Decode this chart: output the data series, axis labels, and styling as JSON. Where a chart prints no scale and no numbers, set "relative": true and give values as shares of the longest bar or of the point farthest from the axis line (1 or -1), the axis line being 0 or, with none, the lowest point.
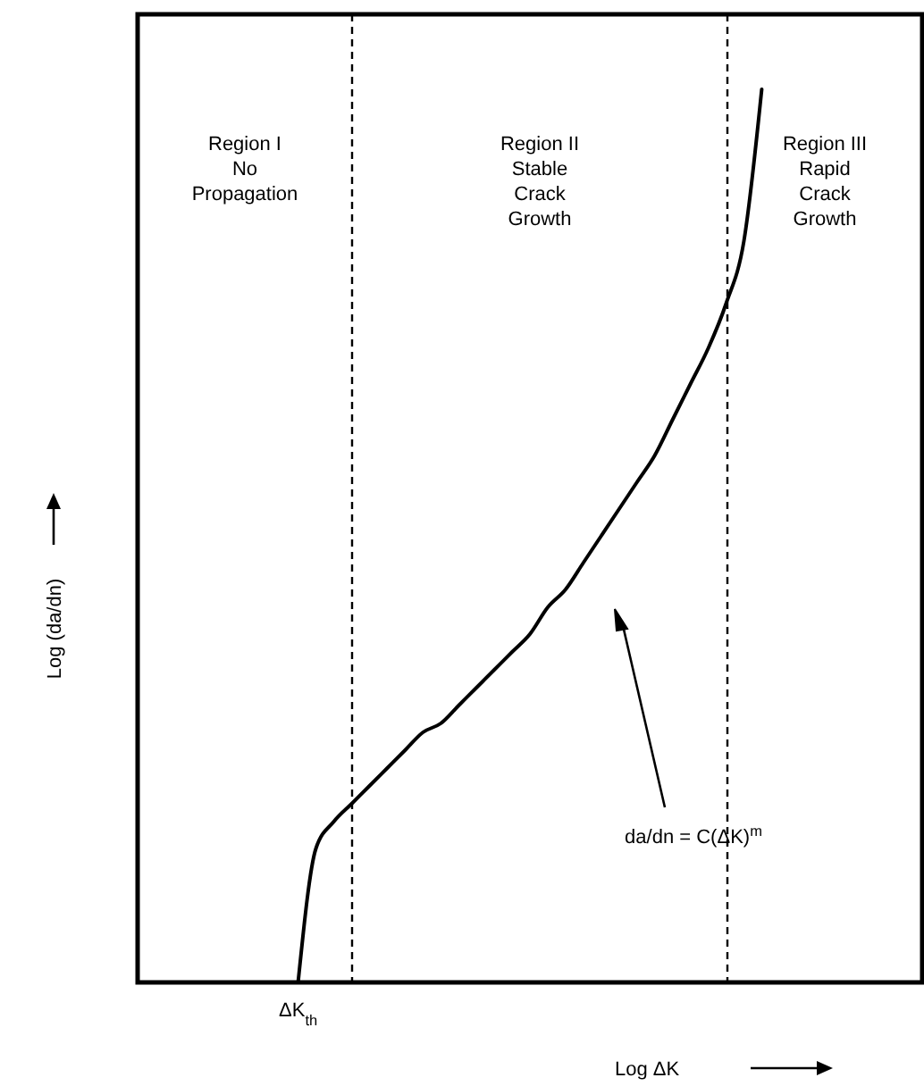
{
  "chart_data": {
    "type": "line",
    "relative": true,
    "xlabel": "Log ΔK",
    "ylabel": "Log (da/dn)",
    "categories": [
      null,
      null,
      null,
      null,
      null,
      null,
      null,
      null,
      null,
      null,
      null,
      null,
      null,
      null,
      null,
      null,
      null,
      null,
      null,
      null,
      null,
      null,
      null,
      null,
      null,
      null,
      null,
      null,
      null,
      null,
      null,
      null,
      null,
      null,
      null,
      null,
      null,
      null,
      null,
      null,
      null,
      null,
      null,
      null,
      null
    ],
    "series": [
      {
        "color": "#000000",
        "values": [
          null,
          null,
          null,
          null,
          null,
          null,
          null,
          null,
          null,
          0,
          0.15,
          0.18,
          0.2,
          0.22,
          0.24,
          0.26,
          0.28,
          0.29,
          0.31,
          0.33,
          0.35,
          0.37,
          0.39,
          0.42,
          0.44,
          0.47,
          0.5,
          0.53,
          0.56,
          0.59,
          0.63,
          0.67,
          0.71,
          0.76,
          0.83,
          1,
          null,
          null,
          null,
          null,
          null,
          null,
          null,
          null,
          null
        ]
      }
    ],
    "annotations": [
      "Region I\nNo\nPropagation",
      "Region II\nStable\nCrack\nGrowth",
      "Region III\nRapid\nCrack\nGrowth",
      "da/dn = C(ΔK)$^{m}$",
      "ΔK$_{th}$"
    ],
    "line_style": "solid"
  }
}
